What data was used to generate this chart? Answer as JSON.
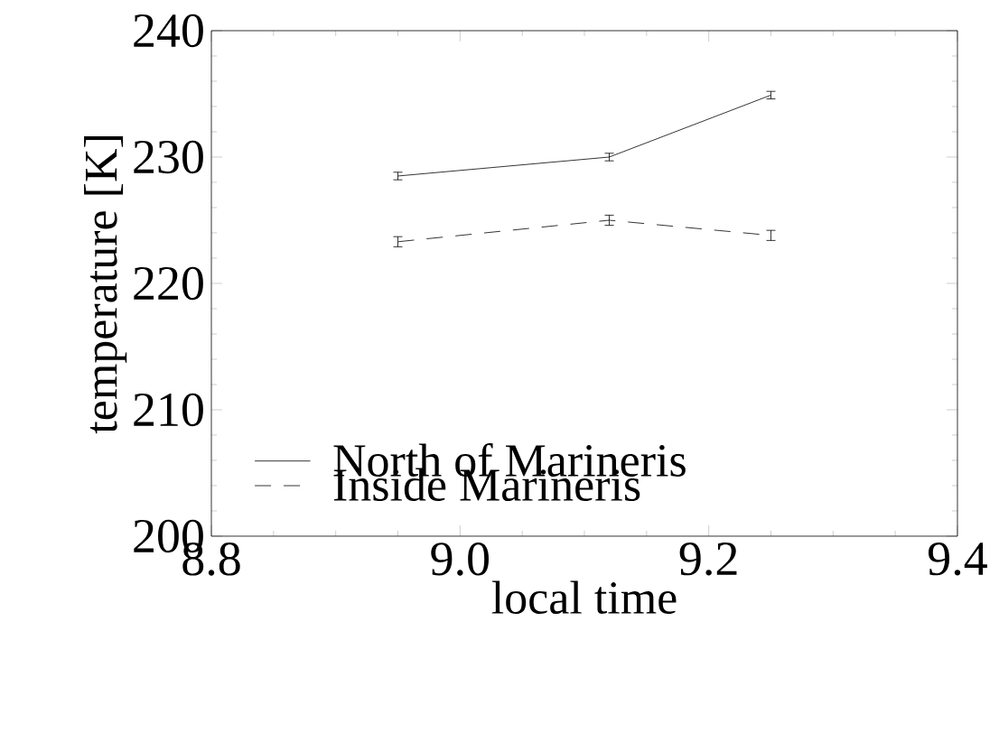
{
  "chart_data": {
    "type": "line",
    "xlabel": "local time",
    "ylabel": "temperature [K]",
    "xlim": [
      8.8,
      9.4
    ],
    "ylim": [
      200,
      240
    ],
    "xticks": [
      8.8,
      {
        "value": 9.0,
        "label": "9.0"
      },
      9.2,
      9.4
    ],
    "yticks": [
      200,
      210,
      220,
      230,
      240
    ],
    "legend": "bottom left",
    "grid": false,
    "series": [
      {
        "name": "North of Marineris",
        "color": "#000000",
        "line_style": "solid",
        "x": [
          8.95,
          9.12,
          9.25
        ],
        "values": [
          228.5,
          230.0,
          234.9
        ],
        "errors": [
          0.3,
          0.3,
          0.3
        ]
      },
      {
        "name": "Inside Marineris",
        "color": "#000000",
        "line_style": "dashed",
        "x": [
          8.95,
          9.12,
          9.25
        ],
        "values": [
          223.3,
          225.0,
          223.8
        ],
        "errors": [
          0.4,
          0.4,
          0.4
        ]
      }
    ]
  }
}
